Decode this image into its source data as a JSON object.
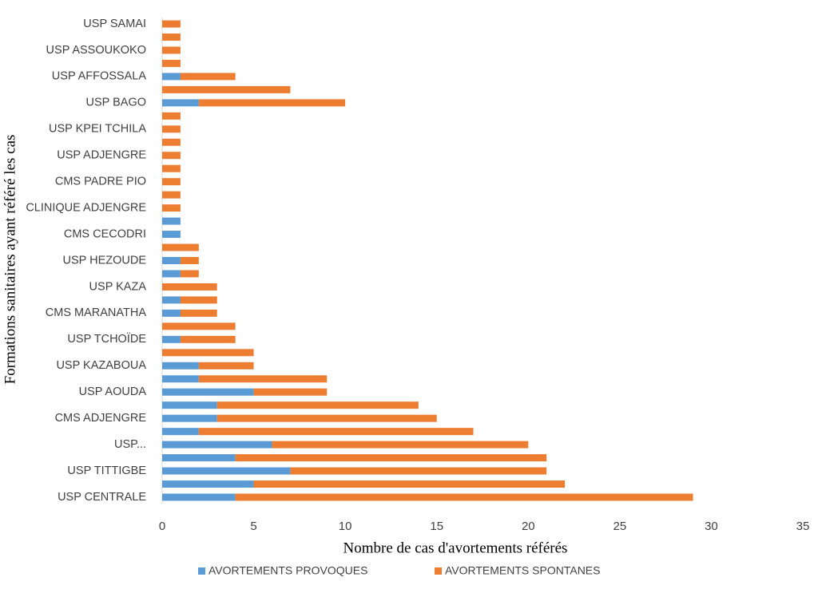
{
  "chart_data": {
    "type": "stacked-barh",
    "x_label": "Nombre de cas d'avortements référés",
    "y_label": "Formations sanitaires ayant référé les cas",
    "categories": [
      "USP CENTRALE",
      null,
      "USP TITTIGBE",
      null,
      "USP...",
      null,
      "CMS ADJENGRE",
      null,
      "USP AOUDA",
      null,
      "USP KAZABOUA",
      null,
      "USP TCHOÏDE",
      null,
      "CMS MARANATHA",
      null,
      "USP KAZA",
      null,
      "USP HEZOUDE",
      null,
      "CMS CECODRI",
      null,
      "CLINIQUE ADJENGRE",
      null,
      "CMS PADRE PIO",
      null,
      "USP ADJENGRE",
      null,
      "USP KPEI TCHILA",
      null,
      "USP BAGO",
      null,
      "USP AFFOSSALA",
      null,
      "USP ASSOUKOKO",
      null,
      "USP SAMAI"
    ],
    "series": [
      {
        "name": "AVORTEMENTS PROVOQUES",
        "color": "#5b9bd5",
        "values": [
          4,
          5,
          7,
          4,
          6,
          2,
          3,
          3,
          5,
          2,
          2,
          0,
          1,
          0,
          1,
          1,
          0,
          1,
          1,
          0,
          1,
          1,
          0,
          0,
          0,
          0,
          0,
          0,
          0,
          0,
          2,
          0,
          1,
          0,
          0,
          0,
          0
        ]
      },
      {
        "name": "AVORTEMENTS SPONTANES",
        "color": "#ed7d31",
        "values": [
          25,
          17,
          14,
          17,
          14,
          15,
          12,
          11,
          4,
          7,
          3,
          5,
          3,
          4,
          2,
          2,
          3,
          1,
          1,
          2,
          0,
          0,
          1,
          1,
          1,
          1,
          1,
          1,
          1,
          1,
          8,
          7,
          3,
          1,
          1,
          1,
          1
        ]
      }
    ],
    "xlim": [
      0,
      35
    ],
    "xticks": [
      0,
      5,
      10,
      15,
      20,
      25,
      30,
      35
    ],
    "grid": false
  }
}
